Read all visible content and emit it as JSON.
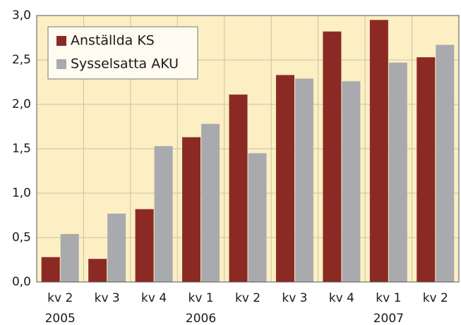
{
  "chart_data": {
    "type": "bar",
    "categories": [
      "kv 2",
      "kv 3",
      "kv 4",
      "kv 1",
      "kv 2",
      "kv 3",
      "kv 4",
      "kv 1",
      "kv 2"
    ],
    "category_groups": [
      "2005",
      null,
      null,
      "2006",
      null,
      null,
      null,
      "2007",
      null
    ],
    "series": [
      {
        "name": "Anställda KS",
        "color": "#8b2a24",
        "values": [
          0.28,
          0.26,
          0.82,
          1.63,
          2.11,
          2.33,
          2.82,
          2.95,
          2.53
        ]
      },
      {
        "name": "Sysselsatta AKU",
        "color": "#a9aaae",
        "values": [
          0.54,
          0.77,
          1.53,
          1.78,
          1.45,
          2.29,
          2.26,
          2.47,
          2.67
        ]
      }
    ],
    "ylim": [
      0,
      3
    ],
    "yticks": [
      {
        "value": 0,
        "label": "0,0"
      },
      {
        "value": 0.5,
        "label": "0,5"
      },
      {
        "value": 1,
        "label": "1,0"
      },
      {
        "value": 1.5,
        "label": "1,5"
      },
      {
        "value": 2,
        "label": "2,0"
      },
      {
        "value": 2.5,
        "label": "2,5"
      },
      {
        "value": 3,
        "label": "3,0"
      }
    ],
    "grid": true,
    "legend": "upper left",
    "background": "#fcefc3"
  }
}
